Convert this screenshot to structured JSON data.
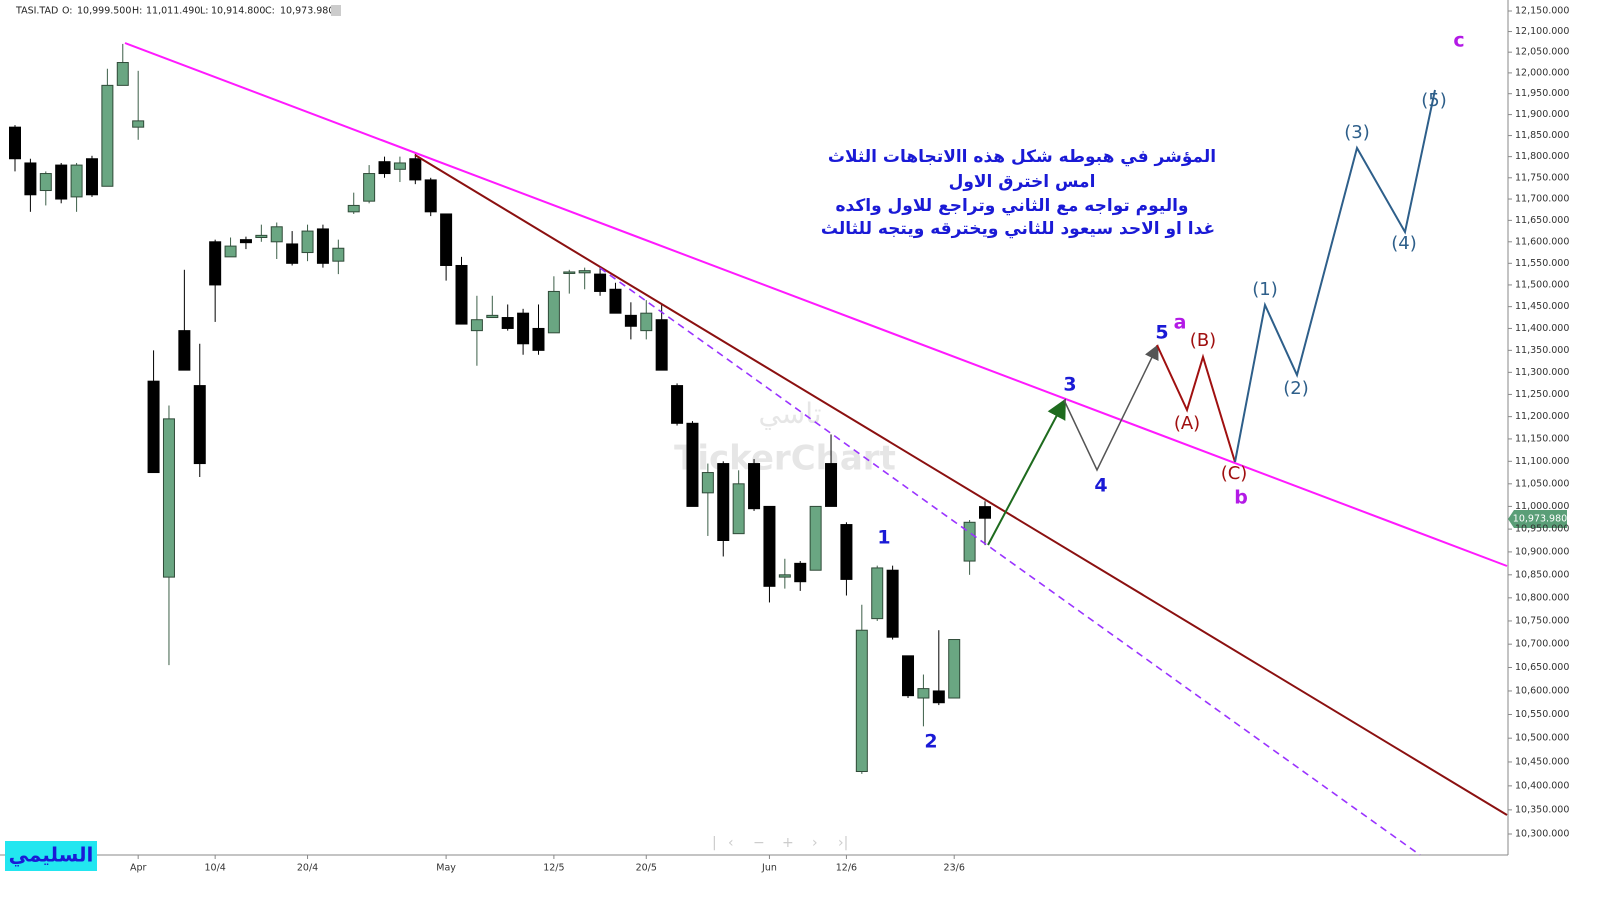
{
  "chart_data": {
    "type": "candlestick",
    "log_scale": true,
    "up_color": "#6aa682",
    "down_color": "#000000",
    "header": {
      "symbol": "TASI.TAD",
      "fields": [
        {
          "key": "O:",
          "text": "10,999.500"
        },
        {
          "key": "H:",
          "text": "11,011.490"
        },
        {
          "key": "L:",
          "text": "10,914.800"
        },
        {
          "key": "C:",
          "text": "10,973.980"
        }
      ]
    },
    "price_badge": "10,973.980",
    "categories": [
      null,
      null,
      null,
      null,
      null,
      null,
      null,
      null,
      "Apr",
      null,
      null,
      null,
      null,
      "10/4",
      null,
      null,
      null,
      null,
      null,
      "20/4",
      null,
      null,
      null,
      null,
      null,
      null,
      null,
      null,
      "May",
      null,
      null,
      null,
      null,
      null,
      null,
      "12/5",
      null,
      null,
      null,
      null,
      null,
      "20/5",
      null,
      null,
      null,
      null,
      null,
      null,
      null,
      "Jun",
      null,
      null,
      null,
      null,
      "12/6",
      null,
      null,
      null,
      null,
      null,
      null,
      "23/6",
      null,
      null
    ],
    "open": [
      11870,
      11785,
      11720,
      11780,
      11705,
      11795,
      11730,
      11970,
      11870,
      11280,
      10845,
      11395,
      11270,
      11600,
      11565,
      11605,
      11610,
      11600,
      11595,
      11575,
      11630,
      11555,
      11670,
      11695,
      11788,
      11770,
      11795,
      11745,
      11665,
      11545,
      11395,
      11425,
      11425,
      11435,
      11400,
      11390,
      11528,
      11528,
      11525,
      11490,
      11430,
      11395,
      11420,
      11270,
      11185,
      11030,
      11095,
      10940,
      11095,
      11000,
      10845,
      10875,
      10860,
      11095,
      10960,
      10430,
      10755,
      10860,
      10675,
      10585,
      10600,
      10585,
      10880,
      10999.5
    ],
    "high": [
      11875,
      11795,
      11765,
      11785,
      11785,
      11802,
      12010,
      12070,
      12005,
      11350,
      11225,
      11535,
      11365,
      11605,
      11610,
      11612,
      11640,
      11645,
      11625,
      11640,
      11640,
      11605,
      11715,
      11780,
      11800,
      11800,
      11810,
      11750,
      11665,
      11565,
      11475,
      11475,
      11455,
      11445,
      11455,
      11520,
      11535,
      11540,
      11540,
      11505,
      11460,
      11465,
      11455,
      11275,
      11190,
      11095,
      11100,
      11080,
      11105,
      11000,
      10885,
      10880,
      11000,
      11160,
      10965,
      10785,
      10870,
      10870,
      10675,
      10635,
      10730,
      10710,
      10970,
      11011.49
    ],
    "low": [
      11765,
      11670,
      11685,
      11690,
      11670,
      11705,
      11730,
      11970,
      11840,
      11075,
      10655,
      11305,
      11065,
      11415,
      11565,
      11583,
      11600,
      11560,
      11545,
      11555,
      11540,
      11525,
      11665,
      11690,
      11750,
      11740,
      11735,
      11660,
      11510,
      11410,
      11315,
      11425,
      11395,
      11340,
      11340,
      11390,
      11480,
      11490,
      11475,
      11435,
      11375,
      11375,
      11305,
      11180,
      11000,
      10935,
      10890,
      10940,
      10990,
      10790,
      10820,
      10815,
      10860,
      11000,
      10805,
      10425,
      10750,
      10710,
      10585,
      10525,
      10570,
      10585,
      10850,
      10914.8
    ],
    "close": [
      11795,
      11710,
      11760,
      11700,
      11780,
      11710,
      11970,
      12025,
      11885,
      11075,
      11195,
      11305,
      11095,
      11500,
      11590,
      11598,
      11615,
      11635,
      11550,
      11625,
      11550,
      11585,
      11685,
      11760,
      11760,
      11785,
      11745,
      11670,
      11545,
      11410,
      11420,
      11430,
      11400,
      11365,
      11350,
      11485,
      11530,
      11533,
      11485,
      11435,
      11405,
      11435,
      11305,
      11185,
      11000,
      11075,
      10925,
      11050,
      10995,
      10825,
      10850,
      10835,
      11000,
      11000,
      10840,
      10730,
      10865,
      10715,
      10590,
      10605,
      10575,
      10710,
      10965,
      10973.98
    ],
    "ylim": [
      10300,
      12150
    ],
    "yticks": [
      {
        "value": 10300,
        "label": "10,300.000"
      },
      {
        "value": 10350,
        "label": "10,350.000"
      },
      {
        "value": 10400,
        "label": "10,400.000"
      },
      {
        "value": 10450,
        "label": "10,450.000"
      },
      {
        "value": 10500,
        "label": "10,500.000"
      },
      {
        "value": 10550,
        "label": "10,550.000"
      },
      {
        "value": 10600,
        "label": "10,600.000"
      },
      {
        "value": 10650,
        "label": "10,650.000"
      },
      {
        "value": 10700,
        "label": "10,700.000"
      },
      {
        "value": 10750,
        "label": "10,750.000"
      },
      {
        "value": 10800,
        "label": "10,800.000"
      },
      {
        "value": 10850,
        "label": "10,850.000"
      },
      {
        "value": 10900,
        "label": "10,900.000"
      },
      {
        "value": 10950,
        "label": "10,950.000"
      },
      {
        "value": 11000,
        "label": "11,000.000"
      },
      {
        "value": 11050,
        "label": "11,050.000"
      },
      {
        "value": 11100,
        "label": "11,100.000"
      },
      {
        "value": 11150,
        "label": "11,150.000"
      },
      {
        "value": 11200,
        "label": "11,200.000"
      },
      {
        "value": 11250,
        "label": "11,250.000"
      },
      {
        "value": 11300,
        "label": "11,300.000"
      },
      {
        "value": 11350,
        "label": "11,350.000"
      },
      {
        "value": 11400,
        "label": "11,400.000"
      },
      {
        "value": 11450,
        "label": "11,450.000"
      },
      {
        "value": 11500,
        "label": "11,500.000"
      },
      {
        "value": 11550,
        "label": "11,550.000"
      },
      {
        "value": 11600,
        "label": "11,600.000"
      },
      {
        "value": 11650,
        "label": "11,650.000"
      },
      {
        "value": 11700,
        "label": "11,700.000"
      },
      {
        "value": 11750,
        "label": "11,750.000"
      },
      {
        "value": 11800,
        "label": "11,800.000"
      },
      {
        "value": 11850,
        "label": "11,850.000"
      },
      {
        "value": 11900,
        "label": "11,900.000"
      },
      {
        "value": 11950,
        "label": "11,950.000"
      },
      {
        "value": 12000,
        "label": "12,000.000"
      },
      {
        "value": 12050,
        "label": "12,050.000"
      },
      {
        "value": 12100,
        "label": "12,100.000"
      },
      {
        "value": 12150,
        "label": "12,150.000"
      }
    ],
    "annotations": [
      "المؤشر في هبوطه شكل هذه االاتجاهات الثلاث",
      "امس اخترق الاول",
      "واليوم تواجه مع الثاني وتراجع للاول واكده",
      "غدا  او الاحد سيعود للثاني ويخترقه ويتجه للثالث"
    ],
    "wave_labels": [
      "1",
      "2",
      "3",
      "4",
      "5",
      "a",
      "(A)",
      "(B)",
      "(C)",
      "b",
      "(1)",
      "(2)",
      "(3)",
      "(4)",
      "(5)",
      "c"
    ],
    "watermark": [
      "تاسي",
      "TickerChart"
    ],
    "author": "السليمي"
  }
}
